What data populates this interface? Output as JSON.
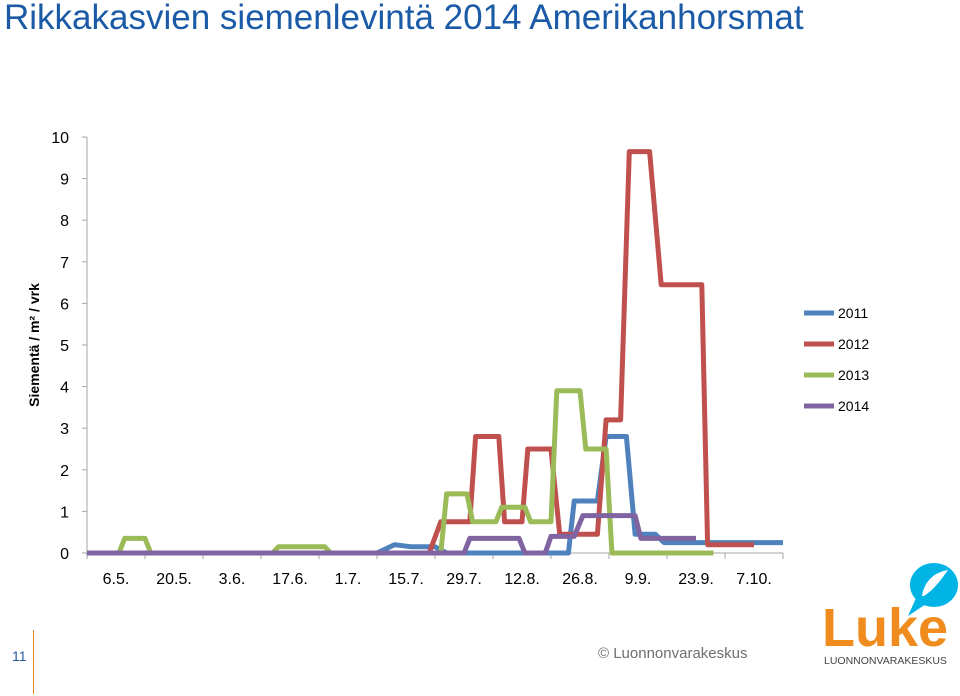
{
  "title": "Rikkakasvien siemenlevintä 2014 Amerikanhorsmat",
  "slide_number": "11",
  "footer": {
    "copyright": "© Luonnonvarakeskus",
    "logo_word": "Luke",
    "logo_subtitle": "LUONNONVARAKESKUS"
  },
  "colors": {
    "title": "#1a5aa6",
    "s2011": "#4f81bd",
    "s2012": "#c0504d",
    "s2013": "#9bbb59",
    "s2014": "#8064a2",
    "brand_orange": "#f08c1e",
    "brand_blue": "#00b4e6"
  },
  "chart_data": {
    "type": "line",
    "title": "",
    "xlabel": "",
    "ylabel": "Siementä / m² / vrk",
    "ylim": [
      0,
      10
    ],
    "yticks": [
      "0",
      "1",
      "2",
      "3",
      "4",
      "5",
      "6",
      "7",
      "8",
      "9",
      "10"
    ],
    "categories": [
      "6.5.",
      "20.5.",
      "3.6.",
      "17.6.",
      "1.7.",
      "15.7.",
      "29.7.",
      "12.8.",
      "26.8.",
      "9.9.",
      "23.9.",
      "7.10."
    ],
    "legend_position": "right",
    "series": [
      {
        "name": "2011",
        "color": "#4f81bd",
        "points": [
          [
            0,
            0
          ],
          [
            5,
            0
          ],
          [
            5.3,
            0.2
          ],
          [
            5.6,
            0.15
          ],
          [
            6,
            0.15
          ],
          [
            6.2,
            0
          ],
          [
            8.3,
            0
          ],
          [
            8.4,
            1.25
          ],
          [
            8.8,
            1.25
          ],
          [
            8.95,
            2.8
          ],
          [
            9.3,
            2.8
          ],
          [
            9.45,
            0.45
          ],
          [
            9.8,
            0.45
          ],
          [
            9.95,
            0.25
          ],
          [
            11.5,
            0.25
          ],
          [
            12,
            0.25
          ]
        ]
      },
      {
        "name": "2012",
        "color": "#c0504d",
        "points": [
          [
            4.8,
            0
          ],
          [
            5.9,
            0
          ],
          [
            6.1,
            0.75
          ],
          [
            6.6,
            0.75
          ],
          [
            6.7,
            2.8
          ],
          [
            7.1,
            2.8
          ],
          [
            7.2,
            0.75
          ],
          [
            7.5,
            0.75
          ],
          [
            7.6,
            2.5
          ],
          [
            8,
            2.5
          ],
          [
            8.15,
            0.45
          ],
          [
            8.8,
            0.45
          ],
          [
            8.95,
            3.2
          ],
          [
            9.2,
            3.2
          ],
          [
            9.35,
            9.65
          ],
          [
            9.7,
            9.65
          ],
          [
            9.9,
            6.45
          ],
          [
            10.6,
            6.45
          ],
          [
            10.7,
            0.2
          ],
          [
            11.5,
            0.2
          ]
        ]
      },
      {
        "name": "2013",
        "color": "#9bbb59",
        "points": [
          [
            0,
            0
          ],
          [
            0.55,
            0
          ],
          [
            0.65,
            0.35
          ],
          [
            1,
            0.35
          ],
          [
            1.1,
            0
          ],
          [
            3.2,
            0
          ],
          [
            3.3,
            0.15
          ],
          [
            4.1,
            0.15
          ],
          [
            4.2,
            0
          ],
          [
            6.1,
            0
          ],
          [
            6.2,
            1.42
          ],
          [
            6.55,
            1.42
          ],
          [
            6.65,
            0.75
          ],
          [
            7.05,
            0.75
          ],
          [
            7.15,
            1.1
          ],
          [
            7.55,
            1.1
          ],
          [
            7.65,
            0.75
          ],
          [
            8,
            0.75
          ],
          [
            8.1,
            3.9
          ],
          [
            8.5,
            3.9
          ],
          [
            8.6,
            2.5
          ],
          [
            8.95,
            2.5
          ],
          [
            9.05,
            0
          ],
          [
            10.8,
            0
          ]
        ]
      },
      {
        "name": "2014",
        "color": "#8064a2",
        "points": [
          [
            0,
            0
          ],
          [
            6.5,
            0
          ],
          [
            6.6,
            0.35
          ],
          [
            7.45,
            0.35
          ],
          [
            7.55,
            0
          ],
          [
            7.9,
            0
          ],
          [
            8,
            0.4
          ],
          [
            8.4,
            0.4
          ],
          [
            8.55,
            0.9
          ],
          [
            9.45,
            0.9
          ],
          [
            9.55,
            0.35
          ],
          [
            10.5,
            0.35
          ]
        ]
      }
    ]
  }
}
